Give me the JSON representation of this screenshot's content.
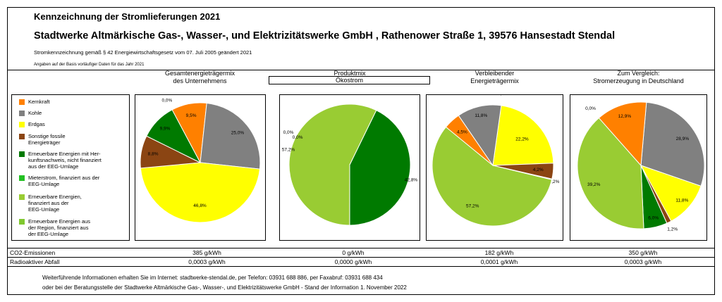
{
  "header": {
    "title": "Kennzeichnung der Stromlieferungen 2021",
    "company": "Stadtwerke Altmärkische Gas-, Wasser-, und Elektrizitätswerke GmbH , Rathenower Straße 1, 39576 Hansestadt Stendal",
    "legal": "Stromkennzeichnung gemäß § 42 Energiewirtschaftsgesetz vom 07. Juli 2005 geändert 2021",
    "basis": "Angaben auf der Basis vorläufiger Daten für das Jahr 2021"
  },
  "columns": [
    {
      "line1": "Gesamtenergieträgermix",
      "line2": "des Unternehmens"
    },
    {
      "line1": "Produktmix",
      "line2": "Ökostrom"
    },
    {
      "line1": "Verbleibender",
      "line2": "Energieträgermix"
    },
    {
      "line1": "Zum Vergleich:",
      "line2": "Stromerzeugung in Deutschland"
    }
  ],
  "colors": {
    "kernkraft": "#ff8000",
    "kohle": "#808080",
    "erdgas": "#ffff00",
    "fossil": "#8b4513",
    "ee_herkunft": "#007a00",
    "mieterstrom": "#23c023",
    "ee_eeg": "#99cc33",
    "ee_region": "#80c830"
  },
  "legend": [
    {
      "key": "kernkraft",
      "label": "Kernkraft"
    },
    {
      "key": "kohle",
      "label": "Kohle"
    },
    {
      "key": "erdgas",
      "label": "Erdgas"
    },
    {
      "key": "fossil",
      "label": "Sonstige fossile\nEnergieträger"
    },
    {
      "key": "ee_herkunft",
      "label": "Erneuerbare Energien mit Her-\nkunftsnachweis, nicht finanziert\naus der EEG-Umlage"
    },
    {
      "key": "mieterstrom",
      "label": "Mieterstrom, finanziert aus der\nEEG-Umlage"
    },
    {
      "key": "ee_eeg",
      "label": "Erneuerbare Energien,\nfinanziert aus der\nEEG-Umlage"
    },
    {
      "key": "ee_region",
      "label": "Erneuerbare Energien aus\nder Region, finanziert aus\nder EEG-Umlage"
    }
  ],
  "chart_data": [
    {
      "type": "pie",
      "title": "Gesamtenergieträgermix des Unternehmens",
      "slices": [
        {
          "key": "kernkraft",
          "value": 9.5,
          "label": "9,5%"
        },
        {
          "key": "kohle",
          "value": 25.0,
          "label": "25,0%"
        },
        {
          "key": "erdgas",
          "value": 46.8,
          "label": "46,8%"
        },
        {
          "key": "fossil",
          "value": 8.8,
          "label": "8,8%"
        },
        {
          "key": "ee_herkunft",
          "value": 9.9,
          "label": "9,9%"
        },
        {
          "key": "mieterstrom",
          "value": 0.0,
          "label": "0,0%"
        }
      ]
    },
    {
      "type": "pie",
      "title": "Produktmix Ökostrom",
      "slices": [
        {
          "key": "ee_herkunft",
          "value": 42.8,
          "label": "42,8%"
        },
        {
          "key": "ee_eeg",
          "value": 57.2,
          "label": "57,2%"
        },
        {
          "key": "mieterstrom",
          "value": 0.0,
          "label": "0,0%"
        },
        {
          "key": "kernkraft",
          "value": 0.0,
          "label": "0,0%"
        }
      ]
    },
    {
      "type": "pie",
      "title": "Verbleibender Energieträgermix",
      "slices": [
        {
          "key": "erdgas",
          "value": 22.2,
          "label": "22,2%"
        },
        {
          "key": "fossil",
          "value": 4.2,
          "label": "4,2%"
        },
        {
          "key": "ee_herkunft",
          "value": 0.2,
          "label": "0,2%"
        },
        {
          "key": "ee_eeg",
          "value": 57.2,
          "label": "57,2%"
        },
        {
          "key": "kernkraft",
          "value": 4.5,
          "label": "4,5%"
        },
        {
          "key": "kohle",
          "value": 11.8,
          "label": "11,8%"
        },
        {
          "key": "mieterstrom",
          "value": 0.0,
          "label": "0,0%"
        }
      ]
    },
    {
      "type": "pie",
      "title": "Zum Vergleich: Stromerzeugung in Deutschland",
      "slices": [
        {
          "key": "kohle",
          "value": 28.9,
          "label": "28,9%"
        },
        {
          "key": "erdgas",
          "value": 11.8,
          "label": "11,8%"
        },
        {
          "key": "fossil",
          "value": 1.2,
          "label": "1,2%"
        },
        {
          "key": "ee_herkunft",
          "value": 6.0,
          "label": "6,0%"
        },
        {
          "key": "ee_eeg",
          "value": 39.2,
          "label": "39,2%"
        },
        {
          "key": "mieterstrom",
          "value": 0.0,
          "label": "0,0%"
        },
        {
          "key": "kernkraft",
          "value": 12.9,
          "label": "12,9%"
        }
      ]
    }
  ],
  "stats": [
    {
      "label": "CO2-Emissionen",
      "values": [
        "385 g/kWh",
        "0 g/kWh",
        "182 g/kWh",
        "350 g/kWh"
      ]
    },
    {
      "label": "Radioaktiver Abfall",
      "values": [
        "0,0003 g/kWh",
        "0,0000 g/kWh",
        "0,0001 g/kWh",
        "0,0003 g/kWh"
      ]
    }
  ],
  "footer": {
    "line1": "Weiterführende Informationen erhalten Sie im Internet: stadtwerke-stendal.de, per Telefon: 03931 688 886, per Faxabruf: 03931 688 434",
    "line2": "oder bei der Beratungsstelle der Stadtwerke Altmärkische Gas-, Wasser-, und Elektrizitätswerke GmbH  - Stand der Information 1. November 2022"
  }
}
